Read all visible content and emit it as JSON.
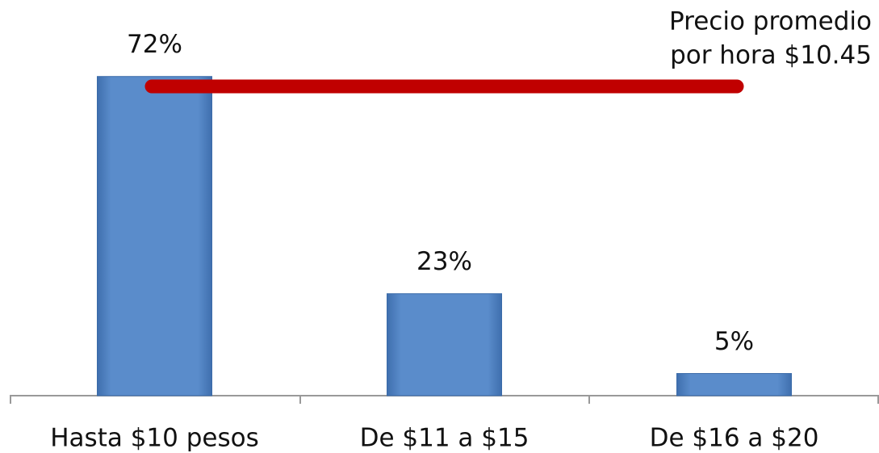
{
  "chart_data": {
    "type": "bar",
    "categories": [
      "Hasta $10 pesos",
      "De $11 a $15",
      "De $16 a $20"
    ],
    "values": [
      72,
      23,
      5
    ],
    "value_labels": [
      "72%",
      "23%",
      "5%"
    ],
    "color": "#5a8ccb",
    "annotation": [
      "Precio promedio",
      "por hora $10.45"
    ],
    "annotation_color": "#c00000"
  }
}
